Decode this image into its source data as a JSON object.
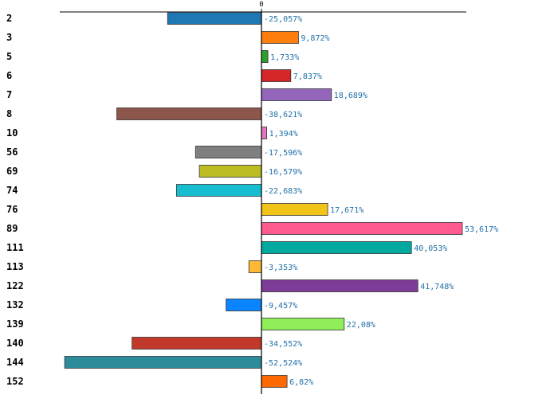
{
  "chart_data": {
    "type": "bar",
    "orientation": "horizontal",
    "title": "",
    "xlabel": "",
    "ylabel": "",
    "xlim": [
      -60,
      60
    ],
    "zero_tick_label": "0",
    "categories": [
      "2",
      "3",
      "5",
      "6",
      "7",
      "8",
      "10",
      "56",
      "69",
      "74",
      "76",
      "89",
      "111",
      "113",
      "122",
      "132",
      "139",
      "140",
      "144",
      "152"
    ],
    "values": [
      -25.057,
      9.872,
      1.733,
      7.837,
      18.689,
      -38.621,
      1.394,
      -17.596,
      -16.579,
      -22.683,
      17.671,
      53.617,
      40.053,
      -3.353,
      41.748,
      -9.457,
      22.08,
      -34.552,
      -52.524,
      6.82
    ],
    "value_labels": [
      "-25,057%",
      "9,872%",
      "1,733%",
      "7,837%",
      "18,689%",
      "-38,621%",
      "1,394%",
      "-17,596%",
      "-16,579%",
      "-22,683%",
      "17,671%",
      "53,617%",
      "40,053%",
      "-3,353%",
      "41,748%",
      "-9,457%",
      "22,08%",
      "-34,552%",
      "-52,524%",
      "6,82%"
    ],
    "colors": [
      "#1f77b4",
      "#ff7f0e",
      "#2ca02c",
      "#d62728",
      "#9467bd",
      "#8c564b",
      "#e377c2",
      "#7f7f7f",
      "#bcbd22",
      "#17becf",
      "#f0c419",
      "#ff5b8f",
      "#00aaa0",
      "#ffb833",
      "#7d3c98",
      "#0a84ff",
      "#90ee5a",
      "#c0392b",
      "#2e8b9a",
      "#ff6a00"
    ],
    "value_label_color": "#1f6fa8",
    "grid": false,
    "legend": "none"
  }
}
